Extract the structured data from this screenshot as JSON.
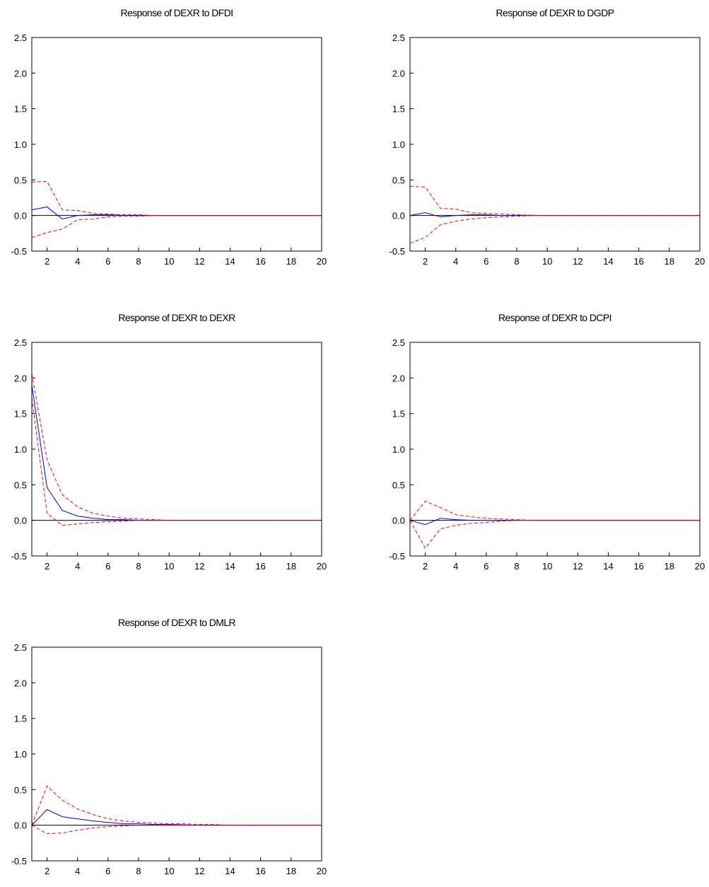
{
  "chart_data": [
    {
      "type": "line",
      "title": "Response of DEXR to DFDI",
      "x": [
        1,
        2,
        3,
        4,
        5,
        6,
        7,
        8,
        9,
        10,
        11,
        12,
        13,
        14,
        15,
        16,
        17,
        18,
        19,
        20
      ],
      "series": [
        {
          "color": "#0000ff",
          "style": "solid",
          "values": [
            0.08,
            0.12,
            -0.05,
            0.0,
            0.01,
            0.01,
            0,
            0,
            0,
            0,
            0,
            0,
            0,
            0,
            0,
            0,
            0,
            0,
            0,
            0
          ]
        },
        {
          "color": "#ff0000",
          "style": "dashed",
          "values": [
            0.47,
            0.48,
            0.08,
            0.07,
            0.03,
            0.02,
            0.01,
            0.01,
            0,
            0,
            0,
            0,
            0,
            0,
            0,
            0,
            0,
            0,
            0,
            0
          ]
        },
        {
          "color": "#ff0000",
          "style": "dashed",
          "values": [
            -0.31,
            -0.24,
            -0.19,
            -0.06,
            -0.05,
            -0.02,
            -0.01,
            -0.01,
            0,
            0,
            0,
            0,
            0,
            0,
            0,
            0,
            0,
            0,
            0,
            0
          ]
        }
      ],
      "xlim": [
        1,
        20
      ],
      "ylim": [
        -0.5,
        2.5
      ],
      "xticks": [
        2,
        4,
        6,
        8,
        10,
        12,
        14,
        16,
        18,
        20
      ],
      "yticks": [
        -0.5,
        {
          "value": 0,
          "label": "0.0"
        },
        0.5,
        {
          "value": 1,
          "label": "1.0"
        },
        1.5,
        {
          "value": 2,
          "label": "2.0"
        },
        2.5
      ],
      "zero_line": true
    },
    {
      "type": "line",
      "title": "Response of DEXR to DGDP",
      "x": [
        1,
        2,
        3,
        4,
        5,
        6,
        7,
        8,
        9,
        10,
        11,
        12,
        13,
        14,
        15,
        16,
        17,
        18,
        19,
        20
      ],
      "series": [
        {
          "color": "#0000ff",
          "style": "solid",
          "values": [
            0.0,
            0.04,
            -0.02,
            0.0,
            0.01,
            0.01,
            0,
            0,
            0,
            0,
            0,
            0,
            0,
            0,
            0,
            0,
            0,
            0,
            0,
            0
          ]
        },
        {
          "color": "#ff0000",
          "style": "dashed",
          "values": [
            0.41,
            0.4,
            0.1,
            0.09,
            0.04,
            0.03,
            0.02,
            0.01,
            0.005,
            0,
            0,
            0,
            0,
            0,
            0,
            0,
            0,
            0,
            0,
            0
          ]
        },
        {
          "color": "#ff0000",
          "style": "dashed",
          "values": [
            -0.39,
            -0.31,
            -0.13,
            -0.08,
            -0.05,
            -0.03,
            -0.02,
            -0.01,
            0,
            0,
            0,
            0,
            0,
            0,
            0,
            0,
            0,
            0,
            0,
            0
          ]
        }
      ],
      "xlim": [
        1,
        20
      ],
      "ylim": [
        -0.5,
        2.5
      ],
      "xticks": [
        2,
        4,
        6,
        8,
        10,
        12,
        14,
        16,
        18,
        20
      ],
      "yticks": [
        -0.5,
        {
          "value": 0,
          "label": "0.0"
        },
        0.5,
        {
          "value": 1,
          "label": "1.0"
        },
        1.5,
        {
          "value": 2,
          "label": "2.0"
        },
        2.5
      ],
      "zero_line": true
    },
    {
      "type": "line",
      "title": "Response of DEXR to DEXR",
      "x": [
        1,
        2,
        3,
        4,
        5,
        6,
        7,
        8,
        9,
        10,
        11,
        12,
        13,
        14,
        15,
        16,
        17,
        18,
        19,
        20
      ],
      "series": [
        {
          "color": "#0000ff",
          "style": "solid",
          "values": [
            1.9,
            0.46,
            0.14,
            0.06,
            0.03,
            0.01,
            0.01,
            0,
            0,
            0,
            0,
            0,
            0,
            0,
            0,
            0,
            0,
            0,
            0,
            0
          ]
        },
        {
          "color": "#ff0000",
          "style": "dashed",
          "values": [
            2.06,
            0.85,
            0.36,
            0.19,
            0.1,
            0.06,
            0.03,
            0.02,
            0.01,
            0,
            0,
            0,
            0,
            0,
            0,
            0,
            0,
            0,
            0,
            0
          ]
        },
        {
          "color": "#ff0000",
          "style": "dashed",
          "values": [
            1.72,
            0.1,
            -0.07,
            -0.05,
            -0.03,
            -0.02,
            -0.01,
            0,
            0,
            0,
            0,
            0,
            0,
            0,
            0,
            0,
            0,
            0,
            0,
            0
          ]
        }
      ],
      "xlim": [
        1,
        20
      ],
      "ylim": [
        -0.5,
        2.5
      ],
      "xticks": [
        2,
        4,
        6,
        8,
        10,
        12,
        14,
        16,
        18,
        20
      ],
      "yticks": [
        -0.5,
        {
          "value": 0,
          "label": "0.0"
        },
        0.5,
        {
          "value": 1,
          "label": "1.0"
        },
        1.5,
        {
          "value": 2,
          "label": "2.0"
        },
        2.5
      ],
      "zero_line": true
    },
    {
      "type": "line",
      "title": "Response of DEXR to DCPI",
      "x": [
        1,
        2,
        3,
        4,
        5,
        6,
        7,
        8,
        9,
        10,
        11,
        12,
        13,
        14,
        15,
        16,
        17,
        18,
        19,
        20
      ],
      "series": [
        {
          "color": "#0000ff",
          "style": "solid",
          "values": [
            0,
            -0.06,
            0.03,
            0.01,
            0.0,
            0,
            0,
            0,
            0,
            0,
            0,
            0,
            0,
            0,
            0,
            0,
            0,
            0,
            0,
            0
          ]
        },
        {
          "color": "#ff0000",
          "style": "dashed",
          "values": [
            0,
            0.27,
            0.18,
            0.08,
            0.05,
            0.03,
            0.02,
            0.01,
            0,
            0,
            0,
            0,
            0,
            0,
            0,
            0,
            0,
            0,
            0,
            0
          ]
        },
        {
          "color": "#ff0000",
          "style": "dashed",
          "values": [
            0,
            -0.39,
            -0.12,
            -0.07,
            -0.04,
            -0.03,
            -0.01,
            0,
            0,
            0,
            0,
            0,
            0,
            0,
            0,
            0,
            0,
            0,
            0,
            0
          ]
        }
      ],
      "xlim": [
        1,
        20
      ],
      "ylim": [
        -0.5,
        2.5
      ],
      "xticks": [
        2,
        4,
        6,
        8,
        10,
        12,
        14,
        16,
        18,
        20
      ],
      "yticks": [
        -0.5,
        {
          "value": 0,
          "label": "0.0"
        },
        0.5,
        {
          "value": 1,
          "label": "1.0"
        },
        1.5,
        {
          "value": 2,
          "label": "2.0"
        },
        2.5
      ],
      "zero_line": true
    },
    {
      "type": "line",
      "title": "Response of DEXR to DMLR",
      "x": [
        1,
        2,
        3,
        4,
        5,
        6,
        7,
        8,
        9,
        10,
        11,
        12,
        13,
        14,
        15,
        16,
        17,
        18,
        19,
        20
      ],
      "series": [
        {
          "color": "#0000ff",
          "style": "solid",
          "values": [
            0,
            0.22,
            0.12,
            0.09,
            0.06,
            0.04,
            0.02,
            0.02,
            0.01,
            0.01,
            0.005,
            0,
            0,
            0,
            0,
            0,
            0,
            0,
            0,
            0
          ]
        },
        {
          "color": "#ff0000",
          "style": "dashed",
          "values": [
            0,
            0.55,
            0.35,
            0.23,
            0.15,
            0.09,
            0.06,
            0.04,
            0.03,
            0.02,
            0.02,
            0.01,
            0.01,
            0,
            0,
            0,
            0,
            0,
            0,
            0
          ]
        },
        {
          "color": "#ff0000",
          "style": "dashed",
          "values": [
            0,
            -0.12,
            -0.11,
            -0.07,
            -0.04,
            -0.02,
            -0.01,
            0,
            0,
            0,
            0,
            0,
            0,
            0,
            0,
            0,
            0,
            0,
            0,
            0
          ]
        }
      ],
      "xlim": [
        1,
        20
      ],
      "ylim": [
        -0.5,
        2.5
      ],
      "xticks": [
        2,
        4,
        6,
        8,
        10,
        12,
        14,
        16,
        18,
        20
      ],
      "yticks": [
        -0.5,
        {
          "value": 0,
          "label": "0.0"
        },
        0.5,
        {
          "value": 1,
          "label": "1.0"
        },
        1.5,
        {
          "value": 2,
          "label": "2.0"
        },
        2.5
      ],
      "zero_line": true
    }
  ]
}
